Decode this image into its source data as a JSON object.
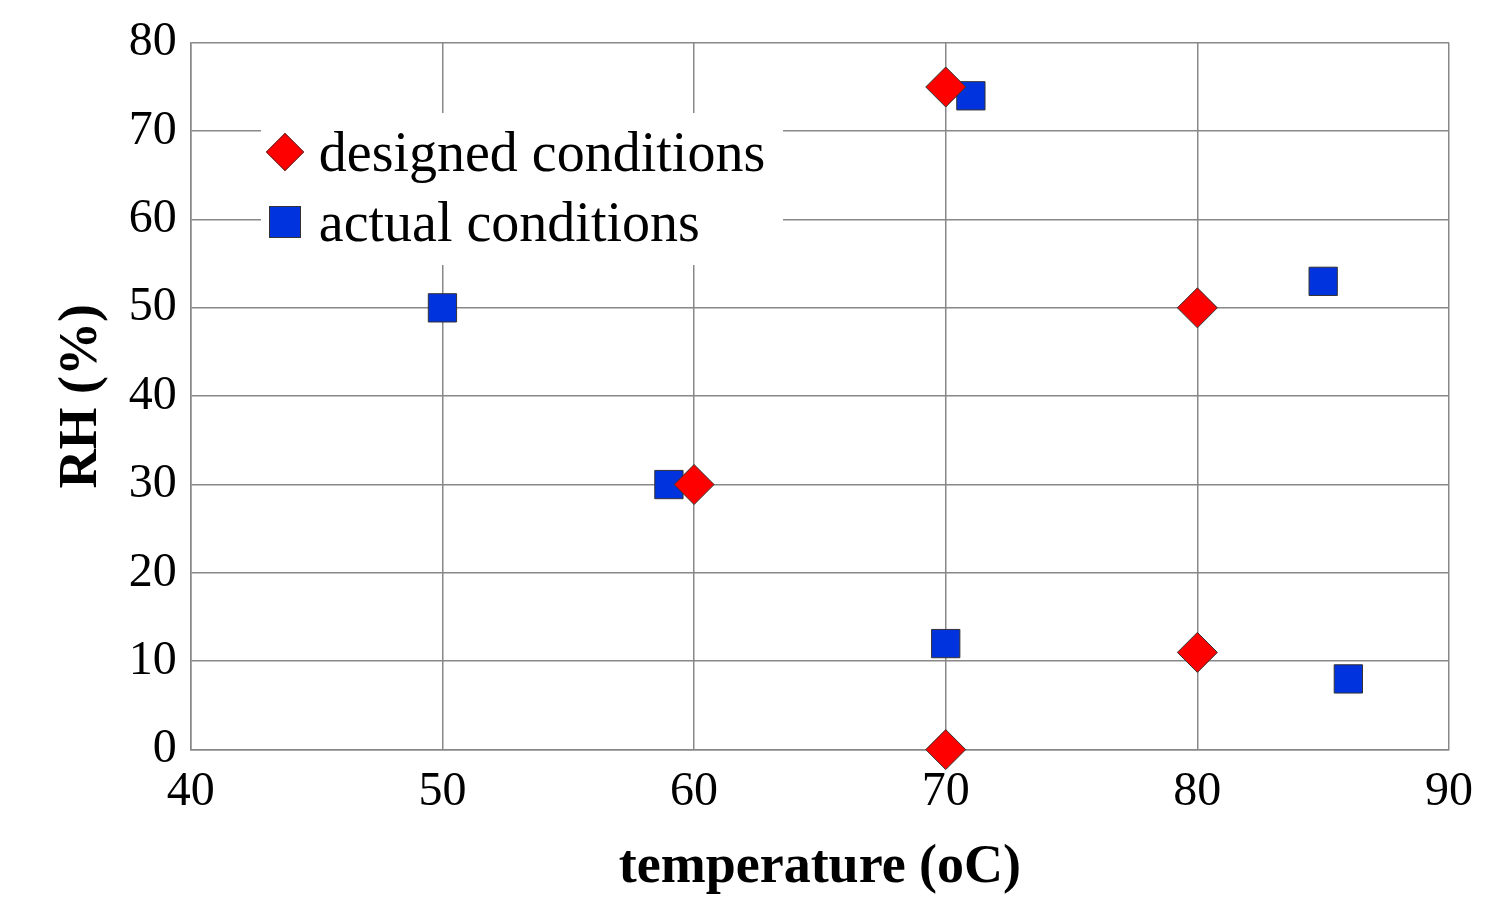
{
  "chart_data": {
    "type": "scatter",
    "xlabel": "temperature (oC)",
    "ylabel": "RH (%)",
    "xlim": [
      40,
      90
    ],
    "xticks": [
      40,
      50,
      60,
      70,
      80,
      90
    ],
    "ylim": [
      0,
      80
    ],
    "yticks": [
      0,
      10,
      20,
      30,
      40,
      50,
      60,
      70,
      80
    ],
    "grid": true,
    "legend": "top left",
    "series": [
      {
        "name": "designed conditions",
        "color": "#ff0000",
        "marker": "diamond",
        "x": [
          70,
          80,
          60,
          80,
          70
        ],
        "values": [
          75,
          50,
          30,
          11,
          0
        ]
      },
      {
        "name": "actual conditions",
        "color": "#0033dd",
        "marker": "square",
        "x": [
          71,
          50,
          59,
          85,
          70,
          86
        ],
        "values": [
          74,
          50,
          30,
          53,
          12,
          8
        ]
      }
    ]
  }
}
